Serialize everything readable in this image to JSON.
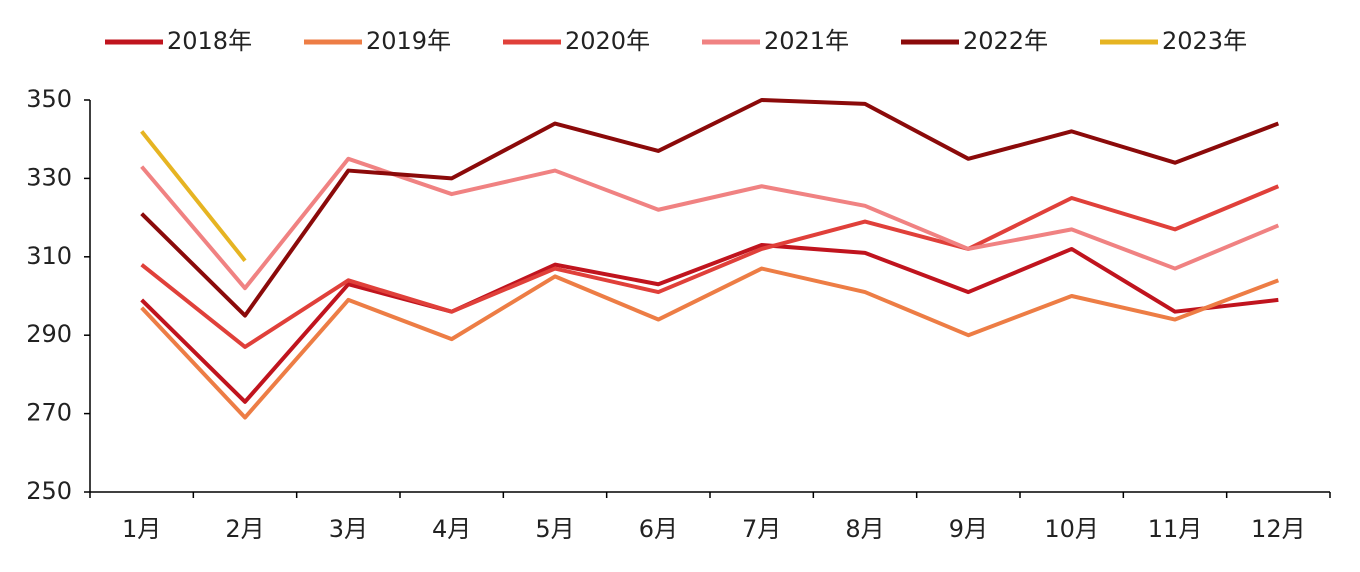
{
  "chart_data": {
    "type": "line",
    "categories": [
      "1月",
      "2月",
      "3月",
      "4月",
      "5月",
      "6月",
      "7月",
      "8月",
      "9月",
      "10月",
      "11月",
      "12月"
    ],
    "series": [
      {
        "name": "2018年",
        "color": "#c0141e",
        "values": [
          299,
          273,
          303,
          296,
          308,
          303,
          313,
          311,
          301,
          312,
          296,
          299
        ]
      },
      {
        "name": "2019年",
        "color": "#ed7d45",
        "values": [
          297,
          269,
          299,
          289,
          305,
          294,
          307,
          301,
          290,
          300,
          294,
          304
        ]
      },
      {
        "name": "2020年",
        "color": "#e0403a",
        "values": [
          308,
          287,
          304,
          296,
          307,
          301,
          312,
          319,
          312,
          325,
          317,
          328
        ]
      },
      {
        "name": "2021年",
        "color": "#f08282",
        "values": [
          333,
          302,
          335,
          326,
          332,
          322,
          328,
          323,
          312,
          317,
          307,
          318
        ]
      },
      {
        "name": "2022年",
        "color": "#8b0a0a",
        "values": [
          321,
          295,
          332,
          330,
          344,
          337,
          350,
          349,
          335,
          342,
          334,
          344
        ]
      },
      {
        "name": "2023年",
        "color": "#e6b422",
        "values": [
          342,
          309,
          null,
          null,
          null,
          null,
          null,
          null,
          null,
          null,
          null,
          null
        ]
      }
    ],
    "ylim": [
      250,
      350
    ],
    "yticks": [
      250,
      270,
      290,
      310,
      330,
      350
    ],
    "grid": false,
    "legend": "top"
  }
}
